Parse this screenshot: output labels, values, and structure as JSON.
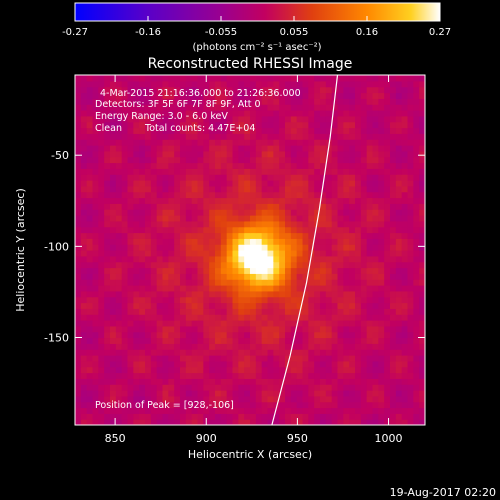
{
  "chart_data": {
    "type": "heatmap",
    "title": "Reconstructed RHESSI Image",
    "xlabel": "Heliocentric X (arcsec)",
    "ylabel": "Heliocentric Y (arcsec)",
    "xlim": [
      828,
      1020
    ],
    "ylim": [
      -198,
      -6
    ],
    "x_ticks": [
      850,
      900,
      950,
      1000
    ],
    "y_ticks": [
      -50,
      -100,
      -150
    ],
    "colorbar": {
      "label": "(photons cm⁻² s⁻¹ asec⁻²)",
      "range": [
        -0.27,
        0.27
      ],
      "ticks": [
        "-0.27",
        "-0.16",
        "-0.055",
        "0.055",
        "0.16",
        "0.27"
      ],
      "colormap": [
        "#0000ff",
        "#5a00c8",
        "#9a0090",
        "#c20060",
        "#e04010",
        "#ff8800",
        "#ffd020",
        "#ffffff"
      ]
    },
    "source_peak": [
      928,
      -106
    ],
    "limb_curve": [
      [
        972,
        -6
      ],
      [
        968,
        -40
      ],
      [
        962,
        -80
      ],
      [
        955,
        -120
      ],
      [
        946,
        -160
      ],
      [
        936,
        -198
      ]
    ],
    "annotations": {
      "time_range": "4-Mar-2015 21:16:36.000 to 21:26:36.000",
      "detectors": "Detectors: 3F 5F 6F 7F 8F 9F, Att 0",
      "energy": "Energy Range: 3.0 - 6.0 keV",
      "algorithm": "Clean",
      "counts": "Total counts: 4.47E+04",
      "peak": "Position of Peak = [928,-106]"
    },
    "footer_date": "19-Aug-2017 02:20"
  }
}
